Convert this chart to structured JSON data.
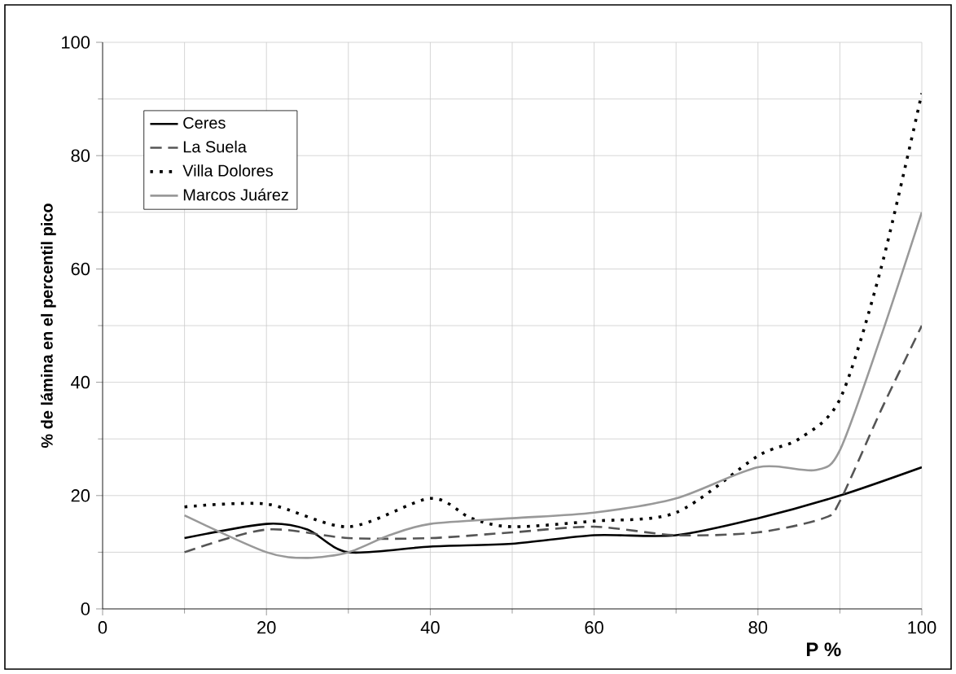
{
  "chart_data": {
    "type": "line",
    "xlabel": "P %",
    "ylabel": "% de lámina en el percentil pico",
    "xlim": [
      0,
      100
    ],
    "ylim": [
      0,
      100
    ],
    "xticks": [
      0,
      20,
      40,
      60,
      80,
      100
    ],
    "yticks": [
      0,
      20,
      40,
      60,
      80,
      100
    ],
    "grid": true,
    "legend": "top left",
    "marker": "none",
    "series": [
      {
        "name": "Ceres",
        "color": "#000000",
        "line_style": "solid",
        "x": [
          10,
          20,
          25,
          30,
          40,
          50,
          60,
          70,
          80,
          90,
          100
        ],
        "values": [
          12.5,
          15,
          14,
          10,
          11,
          11.5,
          13,
          13,
          16,
          20,
          25
        ]
      },
      {
        "name": "La Suela",
        "color": "#555555",
        "line_style": "dashed",
        "x": [
          10,
          20,
          30,
          40,
          50,
          60,
          70,
          80,
          88,
          90,
          95,
          100
        ],
        "values": [
          10,
          14,
          12.5,
          12.5,
          13.5,
          14.5,
          13,
          13.5,
          16,
          19,
          35,
          50
        ]
      },
      {
        "name": "Villa Dolores",
        "color": "#000000",
        "line_style": "dotted",
        "x": [
          10,
          20,
          30,
          40,
          45,
          50,
          60,
          70,
          80,
          85,
          90,
          95,
          100
        ],
        "values": [
          18,
          18.5,
          14.5,
          19.5,
          16,
          14.5,
          15.5,
          17,
          27,
          30,
          37,
          60,
          91
        ]
      },
      {
        "name": "Marcos Juárez",
        "color": "#999999",
        "line_style": "solid",
        "x": [
          10,
          20,
          25,
          30,
          35,
          40,
          50,
          60,
          70,
          80,
          87,
          90,
          95,
          100
        ],
        "values": [
          16.5,
          10,
          9,
          10,
          13,
          15,
          16,
          17,
          19.5,
          25,
          24.5,
          28,
          48,
          70
        ]
      }
    ]
  }
}
